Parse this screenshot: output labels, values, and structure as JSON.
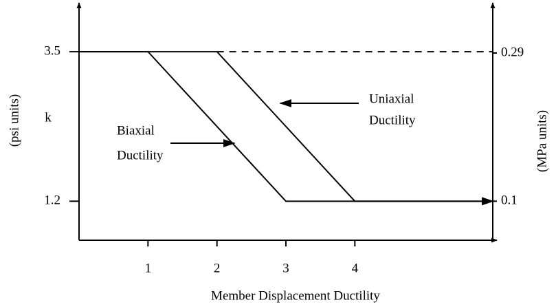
{
  "chart_data": {
    "type": "line",
    "xlabel": "Member Displacement Ductility",
    "ylabel": "(psi units)",
    "y2label": "(MPa units)",
    "yname": "k",
    "xlim": [
      0,
      6
    ],
    "xticks": [
      1,
      2,
      3,
      4
    ],
    "ylim": [
      0.6,
      4.2
    ],
    "yticks": [
      1.2,
      3.5
    ],
    "y2lim": [
      0.05,
      0.35
    ],
    "y2ticks": [
      0.1,
      0.29
    ],
    "series": [
      {
        "name": "Biaxial Ductility",
        "label_lines": [
          "Biaxial",
          "Ductility"
        ],
        "color": "#000000",
        "dash": false,
        "x": [
          0,
          1,
          3,
          6
        ],
        "values": [
          3.5,
          3.5,
          1.2,
          1.2
        ]
      },
      {
        "name": "Uniaxial Ductility",
        "label_lines": [
          "Uniaxial",
          "Ductility"
        ],
        "color": "#000000",
        "dash": false,
        "x": [
          0,
          2,
          4,
          6
        ],
        "values": [
          3.5,
          3.5,
          1.2,
          1.2
        ]
      },
      {
        "color": "#000000",
        "dash": true,
        "x": [
          2,
          6
        ],
        "values": [
          3.5,
          3.5
        ]
      }
    ]
  }
}
